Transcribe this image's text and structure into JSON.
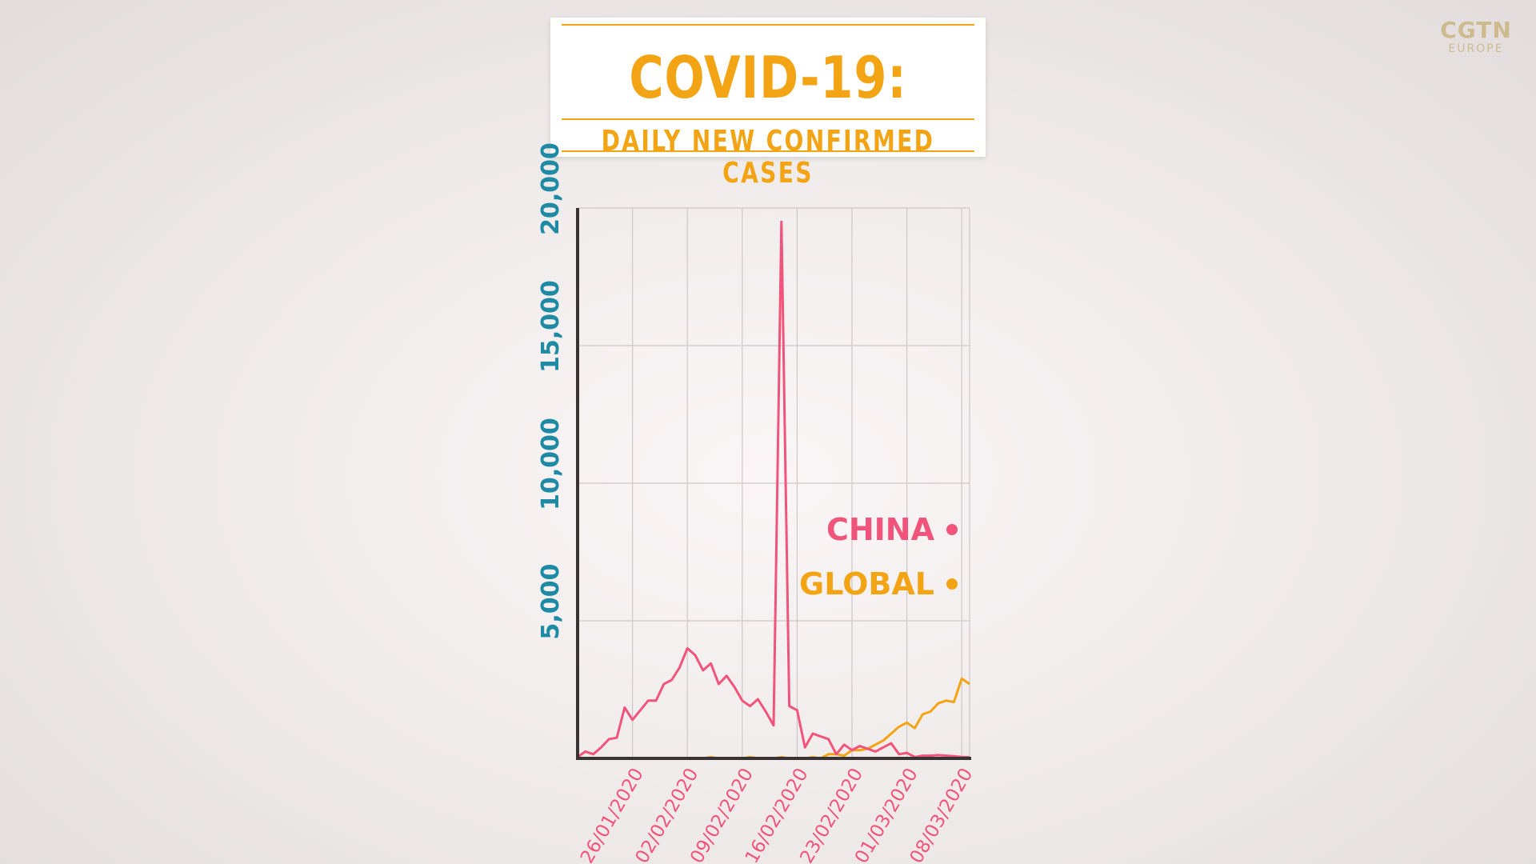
{
  "title": "COVID-19:",
  "subtitle": "DAILY NEW CONFIRMED CASES",
  "logo": {
    "main": "CGTN",
    "sub": "EUROPE"
  },
  "colors": {
    "china": "#f0547a",
    "global": "#f2a414",
    "axis_labels": "#1e8aa3",
    "title": "#f2a414"
  },
  "chart_data": {
    "type": "line",
    "title": "COVID-19: DAILY NEW CONFIRMED CASES",
    "xlabel": "",
    "ylabel": "",
    "ylim": [
      0,
      20000
    ],
    "yticks": [
      5000,
      10000,
      15000,
      20000
    ],
    "ytick_labels": [
      "5,000",
      "10,000",
      "15,000",
      "20,000"
    ],
    "grid": true,
    "legend_position": "right",
    "x_dates": [
      "19/01/2020",
      "20/01/2020",
      "21/01/2020",
      "22/01/2020",
      "23/01/2020",
      "24/01/2020",
      "25/01/2020",
      "26/01/2020",
      "27/01/2020",
      "28/01/2020",
      "29/01/2020",
      "30/01/2020",
      "31/01/2020",
      "01/02/2020",
      "02/02/2020",
      "03/02/2020",
      "04/02/2020",
      "05/02/2020",
      "06/02/2020",
      "07/02/2020",
      "08/02/2020",
      "09/02/2020",
      "10/02/2020",
      "11/02/2020",
      "12/02/2020",
      "13/02/2020",
      "14/02/2020",
      "15/02/2020",
      "16/02/2020",
      "17/02/2020",
      "18/02/2020",
      "19/02/2020",
      "20/02/2020",
      "21/02/2020",
      "22/02/2020",
      "23/02/2020",
      "24/02/2020",
      "25/02/2020",
      "26/02/2020",
      "27/02/2020",
      "28/02/2020",
      "29/02/2020",
      "01/03/2020",
      "02/03/2020",
      "03/03/2020",
      "04/03/2020",
      "05/03/2020",
      "06/03/2020",
      "07/03/2020",
      "08/03/2020",
      "09/03/2020"
    ],
    "xtick_labels": [
      "26/01/2020",
      "02/02/2020",
      "09/02/2020",
      "16/02/2020",
      "23/02/2020",
      "01/03/2020",
      "08/03/2020"
    ],
    "series": [
      {
        "name": "CHINA",
        "color": "#f0547a",
        "values": [
          50,
          250,
          150,
          400,
          700,
          750,
          1850,
          1400,
          1750,
          2100,
          2100,
          2700,
          2850,
          3300,
          4000,
          3750,
          3200,
          3450,
          2700,
          3000,
          2600,
          2100,
          1900,
          2150,
          1700,
          1200,
          19500,
          1900,
          1750,
          400,
          900,
          800,
          700,
          150,
          500,
          300,
          450,
          350,
          250,
          400,
          550,
          150,
          200,
          50,
          100,
          100,
          120,
          100,
          80,
          50,
          45
        ],
        "y_in_range": true
      },
      {
        "name": "GLOBAL",
        "color": "#f2a414",
        "values": [
          0,
          0,
          0,
          0,
          0,
          0,
          0,
          0,
          0,
          0,
          0,
          0,
          0,
          0,
          0,
          0,
          0,
          50,
          0,
          0,
          0,
          0,
          50,
          0,
          0,
          0,
          50,
          0,
          0,
          0,
          50,
          0,
          150,
          150,
          100,
          300,
          300,
          350,
          500,
          650,
          900,
          1150,
          1300,
          1100,
          1600,
          1700,
          2000,
          2100,
          2050,
          2900,
          2700
        ]
      }
    ]
  }
}
